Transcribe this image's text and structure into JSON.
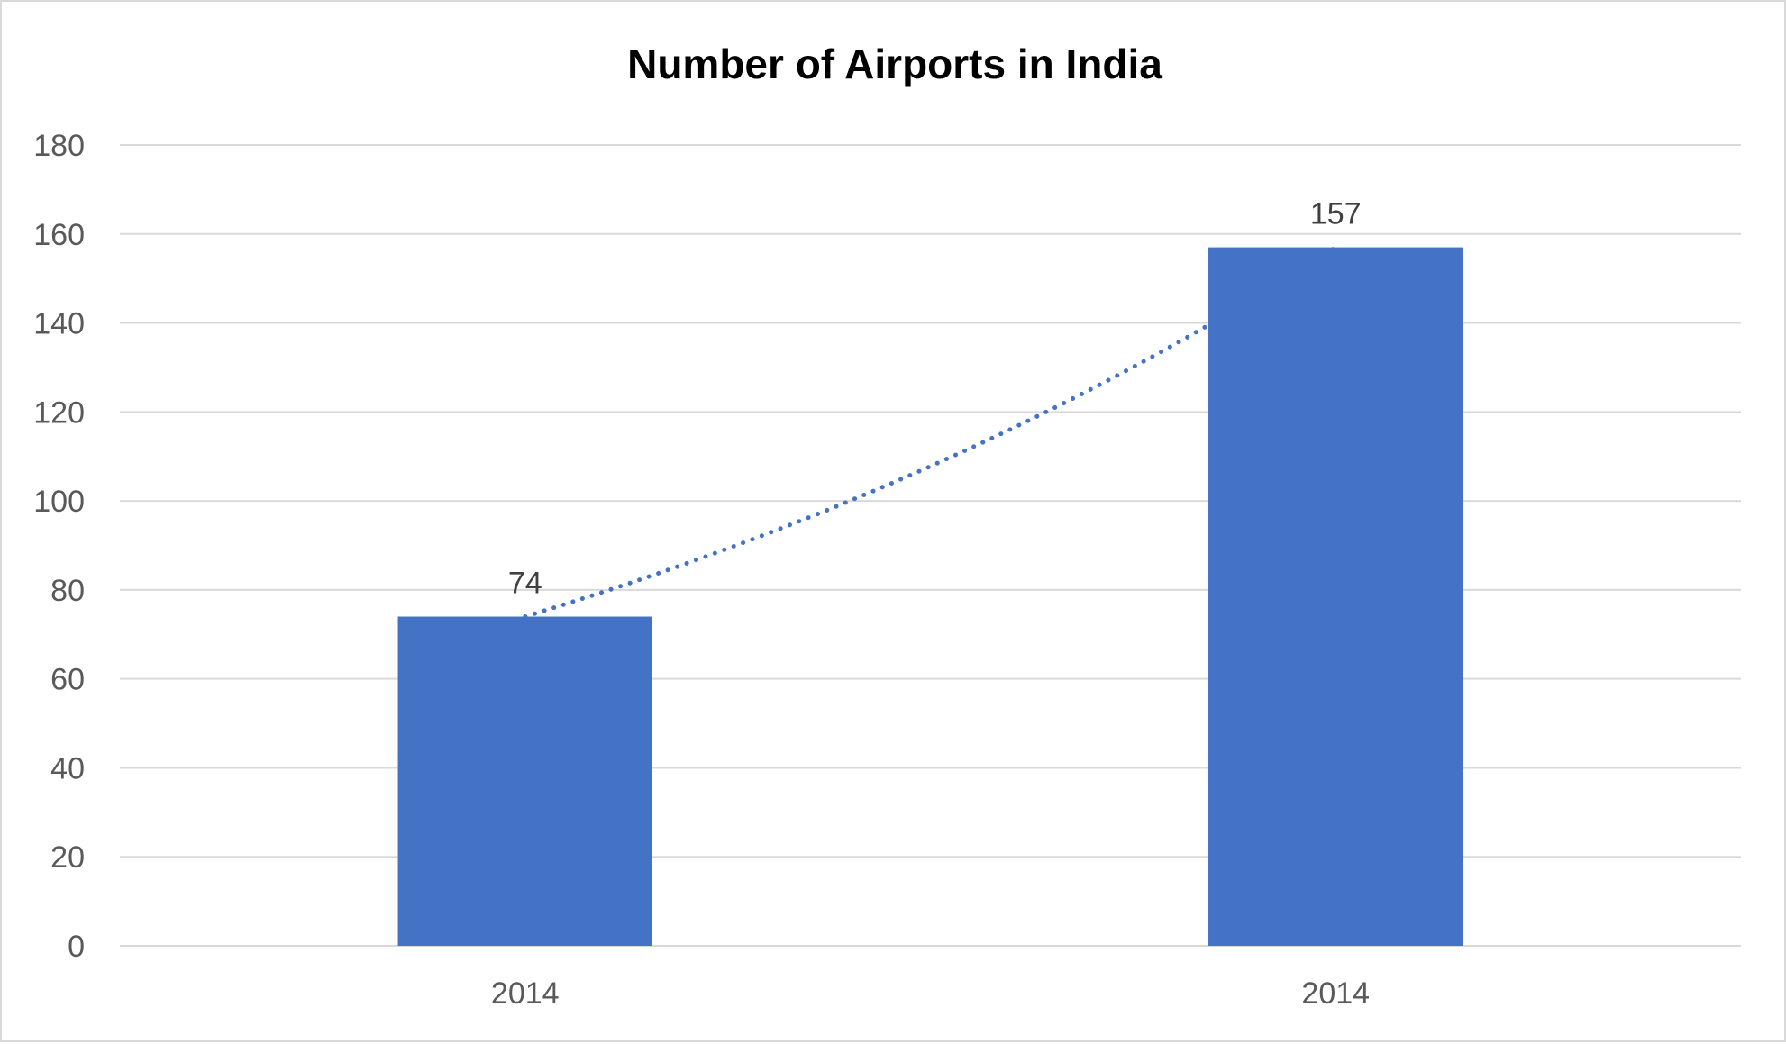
{
  "chart_data": {
    "type": "bar",
    "title": "Number of Airports in India",
    "xlabel": "",
    "ylabel": "",
    "categories": [
      "2014",
      "2014"
    ],
    "values": [
      74,
      157
    ],
    "data_labels": [
      "74",
      "157"
    ],
    "ylim": [
      0,
      180
    ],
    "y_ticks": [
      0,
      20,
      40,
      60,
      80,
      100,
      120,
      140,
      160,
      180
    ],
    "y_tick_labels": [
      "0",
      "20",
      "40",
      "60",
      "80",
      "100",
      "120",
      "140",
      "160",
      "180"
    ],
    "grid": true,
    "legend": "none",
    "trendline": {
      "style": "dotted",
      "type": "exponential"
    },
    "colors": {
      "bar": "#4472C4",
      "trendline": "#4472C4",
      "gridline": "#d9d9d9",
      "tick_text": "#595959",
      "data_label_text": "#404040",
      "title_text": "#000000"
    }
  }
}
